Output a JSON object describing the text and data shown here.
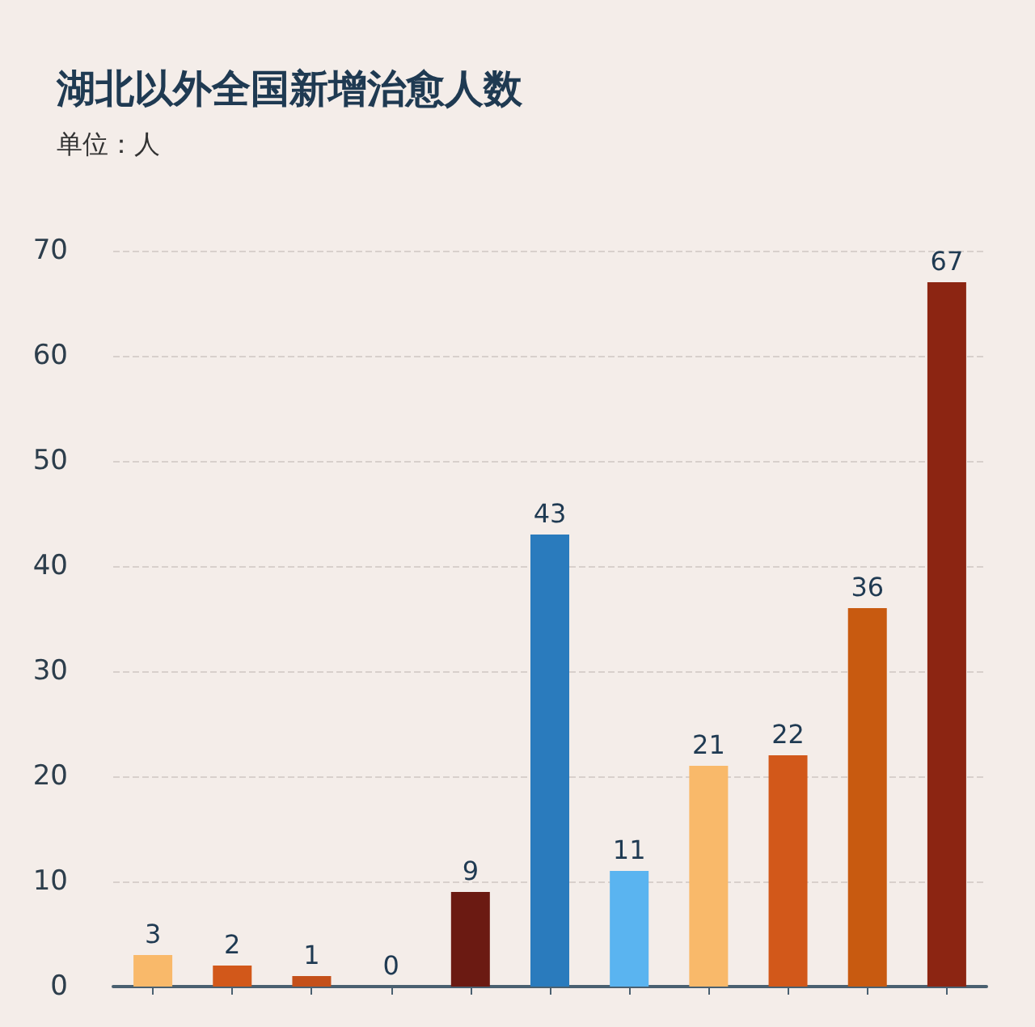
{
  "chart_data": {
    "type": "bar",
    "title": "湖北以外全国新增治愈人数",
    "subtitle": "单位：人",
    "categories": [
      null,
      null,
      null,
      null,
      null,
      null,
      null,
      null,
      null,
      null,
      null
    ],
    "values": [
      3,
      2,
      1,
      0,
      9,
      43,
      11,
      21,
      22,
      36,
      67
    ],
    "colors": [
      "#f9b96a",
      "#d2581a",
      "#c4501a",
      "#c4501a",
      "#6b1a12",
      "#2a7bbd",
      "#5ab4f0",
      "#f9b96a",
      "#d2581a",
      "#c85a10",
      "#8c2512"
    ],
    "ylim": [
      0,
      70
    ],
    "yticks": [
      0,
      10,
      20,
      30,
      40,
      50,
      60,
      70
    ],
    "grid": "y",
    "data_labels": true
  }
}
